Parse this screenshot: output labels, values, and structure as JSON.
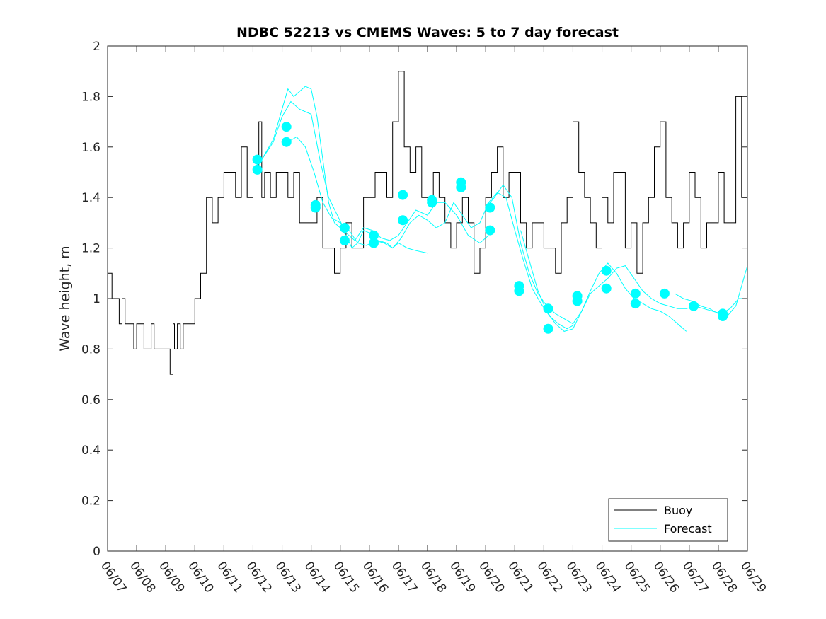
{
  "chart_data": {
    "type": "line",
    "title": "NDBC 52213 vs CMEMS Waves: 5 to 7 day forecast",
    "xlabel": "",
    "ylabel": "Wave height, m",
    "xlim": [
      "06/07",
      "06/29"
    ],
    "ylim": [
      0,
      2
    ],
    "x_ticks": [
      "06/07",
      "06/08",
      "06/09",
      "06/10",
      "06/11",
      "06/12",
      "06/13",
      "06/14",
      "06/15",
      "06/16",
      "06/17",
      "06/18",
      "06/19",
      "06/20",
      "06/21",
      "06/22",
      "06/23",
      "06/24",
      "06/25",
      "06/26",
      "06/27",
      "06/28",
      "06/29"
    ],
    "y_ticks": [
      "0",
      "0.2",
      "0.4",
      "0.6",
      "0.8",
      "1",
      "1.2",
      "1.4",
      "1.6",
      "1.8",
      "2"
    ],
    "grid": false,
    "legend": {
      "position": "bottom-right",
      "entries": [
        "Buoy",
        "Forecast"
      ]
    },
    "colors": {
      "buoy": "#000000",
      "forecast": "#00ffff"
    },
    "series": [
      {
        "name": "Buoy",
        "x_days": [
          0,
          0.15,
          0.25,
          0.4,
          0.5,
          0.6,
          0.75,
          0.9,
          1.0,
          1.1,
          1.25,
          1.4,
          1.5,
          1.6,
          1.75,
          1.9,
          2.0,
          2.15,
          2.25,
          2.3,
          2.4,
          2.5,
          2.6,
          2.75,
          2.9,
          3.0,
          3.2,
          3.4,
          3.6,
          3.8,
          4.0,
          4.2,
          4.4,
          4.6,
          4.8,
          5.0,
          5.2,
          5.3,
          5.4,
          5.6,
          5.8,
          6.0,
          6.2,
          6.4,
          6.6,
          6.8,
          7.0,
          7.2,
          7.4,
          7.6,
          7.8,
          8.0,
          8.2,
          8.4,
          8.6,
          8.8,
          9.0,
          9.2,
          9.4,
          9.6,
          9.8,
          10.0,
          10.2,
          10.4,
          10.6,
          10.8,
          11.0,
          11.2,
          11.4,
          11.6,
          11.8,
          12.0,
          12.2,
          12.4,
          12.6,
          12.8,
          13.0,
          13.2,
          13.4,
          13.6,
          13.8,
          14.0,
          14.2,
          14.4,
          14.6,
          14.8,
          15.0,
          15.2,
          15.4,
          15.6,
          15.8,
          16.0,
          16.2,
          16.4,
          16.6,
          16.8,
          17.0,
          17.2,
          17.4,
          17.6,
          17.8,
          18.0,
          18.2,
          18.4,
          18.6,
          18.8,
          19.0,
          19.2,
          19.4,
          19.6,
          19.8,
          20.0,
          20.2,
          20.4,
          20.6,
          20.8,
          21.0,
          21.2,
          21.4,
          21.6,
          21.8,
          22.0
        ],
        "y": [
          1.1,
          1.0,
          1.0,
          0.9,
          1.0,
          0.9,
          0.9,
          0.8,
          0.9,
          0.9,
          0.8,
          0.8,
          0.9,
          0.8,
          0.8,
          0.8,
          0.8,
          0.7,
          0.9,
          0.8,
          0.9,
          0.8,
          0.9,
          0.9,
          0.9,
          1.0,
          1.1,
          1.4,
          1.3,
          1.4,
          1.5,
          1.5,
          1.4,
          1.6,
          1.4,
          1.5,
          1.7,
          1.4,
          1.5,
          1.4,
          1.5,
          1.5,
          1.4,
          1.5,
          1.3,
          1.3,
          1.3,
          1.4,
          1.2,
          1.2,
          1.1,
          1.2,
          1.3,
          1.2,
          1.2,
          1.4,
          1.4,
          1.5,
          1.5,
          1.4,
          1.7,
          1.9,
          1.6,
          1.5,
          1.6,
          1.4,
          1.4,
          1.5,
          1.4,
          1.3,
          1.2,
          1.3,
          1.4,
          1.3,
          1.1,
          1.2,
          1.4,
          1.5,
          1.6,
          1.4,
          1.5,
          1.5,
          1.3,
          1.2,
          1.3,
          1.3,
          1.2,
          1.2,
          1.1,
          1.3,
          1.4,
          1.7,
          1.5,
          1.4,
          1.3,
          1.2,
          1.4,
          1.3,
          1.5,
          1.5,
          1.2,
          1.3,
          1.1,
          1.3,
          1.4,
          1.6,
          1.7,
          1.4,
          1.3,
          1.2,
          1.3,
          1.5,
          1.4,
          1.2,
          1.3,
          1.3,
          1.5,
          1.3,
          1.3,
          1.8,
          1.4,
          1.3
        ]
      },
      {
        "name": "Forecast",
        "runs": [
          {
            "x_days": [
              5.0,
              5.3,
              5.7,
              6.0,
              6.2,
              6.4,
              6.6,
              6.8,
              7.0,
              7.2,
              7.4,
              7.6,
              7.8,
              8.0,
              8.2,
              8.4,
              8.6,
              8.8,
              9.0,
              9.3,
              9.6,
              9.8,
              10.0,
              10.3,
              10.6,
              11.0
            ],
            "y": [
              1.5,
              1.55,
              1.63,
              1.75,
              1.83,
              1.8,
              1.82,
              1.84,
              1.83,
              1.72,
              1.55,
              1.38,
              1.3,
              1.28,
              1.25,
              1.2,
              1.22,
              1.27,
              1.26,
              1.23,
              1.22,
              1.2,
              1.22,
              1.2,
              1.19,
              1.18
            ]
          },
          {
            "x_days": [
              5.0,
              5.3,
              5.7,
              6.0,
              6.3,
              6.6,
              7.0,
              7.3,
              7.6,
              7.9,
              8.2,
              8.5,
              8.8,
              9.1,
              9.4,
              9.7,
              10.0,
              10.3,
              10.6,
              11.0,
              11.3,
              11.6,
              12.0,
              12.4,
              12.8,
              13.1
            ],
            "y": [
              1.51,
              1.55,
              1.62,
              1.72,
              1.78,
              1.75,
              1.73,
              1.55,
              1.4,
              1.33,
              1.26,
              1.23,
              1.28,
              1.27,
              1.24,
              1.23,
              1.25,
              1.3,
              1.35,
              1.33,
              1.38,
              1.38,
              1.33,
              1.25,
              1.22,
              1.25
            ]
          },
          {
            "x_days": [
              6.2,
              6.5,
              6.8,
              7.1,
              7.4,
              7.7,
              8.0,
              8.3,
              8.6,
              8.9,
              9.2,
              9.5,
              9.8,
              10.1,
              10.4,
              10.7,
              11.0,
              11.3,
              11.6,
              11.9,
              12.2,
              12.5,
              12.8,
              13.1,
              13.4,
              13.7,
              14.0,
              14.3,
              14.6,
              14.9,
              15.2,
              15.5,
              15.8,
              16.1
            ],
            "y": [
              1.62,
              1.64,
              1.6,
              1.5,
              1.38,
              1.32,
              1.3,
              1.27,
              1.22,
              1.21,
              1.23,
              1.22,
              1.2,
              1.24,
              1.3,
              1.33,
              1.31,
              1.28,
              1.3,
              1.38,
              1.33,
              1.28,
              1.3,
              1.38,
              1.42,
              1.4,
              1.27,
              1.15,
              1.04,
              0.98,
              0.93,
              0.9,
              0.88,
              0.9
            ]
          },
          {
            "x_days": [
              13.0,
              13.3,
              13.6,
              13.9,
              14.2,
              14.5,
              14.8,
              15.1,
              15.4,
              15.7,
              16.0,
              16.3,
              16.6,
              16.9,
              17.2,
              17.5,
              17.8,
              18.1,
              18.4,
              18.7,
              19.0,
              19.3,
              19.6,
              19.9,
              20.2,
              20.5,
              20.8,
              21.1,
              21.4,
              21.7,
              22.0
            ],
            "y": [
              1.36,
              1.4,
              1.45,
              1.4,
              1.22,
              1.1,
              1.02,
              0.97,
              0.94,
              0.92,
              0.9,
              0.95,
              1.02,
              1.05,
              1.08,
              1.12,
              1.13,
              1.08,
              1.03,
              1.0,
              0.98,
              0.97,
              0.96,
              0.96,
              0.97,
              0.96,
              0.95,
              0.94,
              0.96,
              1.0,
              1.0
            ]
          },
          {
            "x_days": [
              14.2,
              14.5,
              14.8,
              15.1,
              15.4,
              15.7,
              16.0,
              16.3,
              16.6,
              16.9,
              17.2,
              17.5,
              17.8,
              18.1,
              18.4,
              18.7,
              19.0,
              19.3,
              19.6,
              19.9
            ],
            "y": [
              1.27,
              1.15,
              1.03,
              0.95,
              0.9,
              0.87,
              0.88,
              0.95,
              1.03,
              1.1,
              1.14,
              1.1,
              1.04,
              1.0,
              0.98,
              0.96,
              0.95,
              0.93,
              0.9,
              0.87
            ]
          },
          {
            "x_days": [
              19.5,
              19.8,
              20.1,
              20.4,
              20.7,
              21.0,
              21.3,
              21.6,
              22.0
            ],
            "y": [
              1.02,
              1.0,
              0.99,
              0.97,
              0.96,
              0.94,
              0.93,
              0.97,
              1.13
            ]
          }
        ],
        "markers": [
          {
            "x_day": 5.15,
            "y": 1.55
          },
          {
            "x_day": 5.15,
            "y": 1.51
          },
          {
            "x_day": 6.15,
            "y": 1.68
          },
          {
            "x_day": 6.15,
            "y": 1.62
          },
          {
            "x_day": 7.15,
            "y": 1.37
          },
          {
            "x_day": 7.15,
            "y": 1.36
          },
          {
            "x_day": 8.15,
            "y": 1.28
          },
          {
            "x_day": 8.15,
            "y": 1.23
          },
          {
            "x_day": 9.15,
            "y": 1.25
          },
          {
            "x_day": 9.15,
            "y": 1.22
          },
          {
            "x_day": 10.15,
            "y": 1.41
          },
          {
            "x_day": 10.15,
            "y": 1.31
          },
          {
            "x_day": 11.15,
            "y": 1.39
          },
          {
            "x_day": 11.15,
            "y": 1.38
          },
          {
            "x_day": 12.15,
            "y": 1.46
          },
          {
            "x_day": 12.15,
            "y": 1.44
          },
          {
            "x_day": 13.15,
            "y": 1.36
          },
          {
            "x_day": 13.15,
            "y": 1.27
          },
          {
            "x_day": 14.15,
            "y": 1.05
          },
          {
            "x_day": 14.15,
            "y": 1.03
          },
          {
            "x_day": 15.15,
            "y": 0.96
          },
          {
            "x_day": 15.15,
            "y": 0.88
          },
          {
            "x_day": 16.15,
            "y": 1.01
          },
          {
            "x_day": 16.15,
            "y": 0.99
          },
          {
            "x_day": 17.15,
            "y": 1.11
          },
          {
            "x_day": 17.15,
            "y": 1.04
          },
          {
            "x_day": 18.15,
            "y": 1.02
          },
          {
            "x_day": 18.15,
            "y": 0.98
          },
          {
            "x_day": 19.15,
            "y": 1.02
          },
          {
            "x_day": 20.15,
            "y": 0.97
          },
          {
            "x_day": 21.15,
            "y": 0.94
          },
          {
            "x_day": 21.15,
            "y": 0.93
          }
        ]
      }
    ]
  }
}
